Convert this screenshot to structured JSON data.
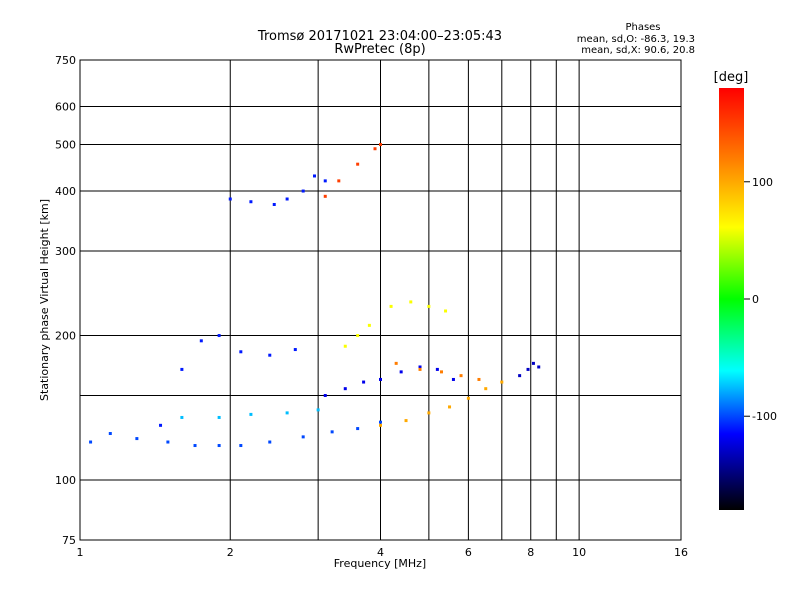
{
  "chart_data": {
    "type": "scatter",
    "title": "Tromsø 20171021 23:04:00–23:05:43",
    "subtitle": "RwPretec (8p)",
    "xlabel": "Frequency [MHz]",
    "ylabel": "Stationary phase Virtual Height [km]",
    "x_scale": "log",
    "y_scale": "log",
    "xlim": [
      1,
      16
    ],
    "ylim": [
      75,
      750
    ],
    "x_ticks": [
      1,
      2,
      4,
      6,
      8,
      10,
      16
    ],
    "x_tick_labels": [
      "1",
      "2",
      "4",
      "6",
      "8",
      "10",
      "16"
    ],
    "x_extra_gridlines": [
      3,
      5,
      7,
      9
    ],
    "y_ticks": [
      75,
      100,
      200,
      300,
      400,
      500,
      600,
      750
    ],
    "y_tick_labels": [
      "75",
      "100",
      "200",
      "300",
      "400",
      "500",
      "600",
      "750"
    ],
    "y_extra_gridlines": [
      150
    ],
    "grid": true,
    "stats": {
      "heading": "Phases",
      "line_o": "mean, sd,O: -86.3, 19.3",
      "line_x": "mean, sd,X: 90.6, 20.8"
    },
    "colorbar": {
      "label": "[deg]",
      "range": [
        -180,
        180
      ],
      "ticks": [
        100,
        0,
        -100
      ],
      "tick_labels": [
        "100",
        "0",
        "-100"
      ]
    },
    "series": [
      {
        "phase": -100,
        "points": [
          [
            1.05,
            120
          ],
          [
            1.15,
            125
          ],
          [
            1.3,
            122
          ],
          [
            1.5,
            120
          ],
          [
            1.7,
            118
          ],
          [
            1.9,
            118
          ],
          [
            2.1,
            118
          ],
          [
            2.4,
            120
          ],
          [
            2.8,
            123
          ],
          [
            3.2,
            126
          ],
          [
            3.6,
            128
          ],
          [
            4.0,
            132
          ]
        ]
      },
      {
        "phase": -75,
        "points": [
          [
            1.6,
            135
          ],
          [
            1.9,
            135
          ],
          [
            2.2,
            137
          ],
          [
            2.6,
            138
          ],
          [
            3.0,
            140
          ]
        ]
      },
      {
        "phase": -110,
        "points": [
          [
            1.45,
            130
          ],
          [
            1.6,
            170
          ],
          [
            1.75,
            195
          ],
          [
            1.9,
            200
          ],
          [
            2.1,
            185
          ],
          [
            2.4,
            182
          ],
          [
            2.7,
            187
          ]
        ]
      },
      {
        "phase": -110,
        "points": [
          [
            2.0,
            385
          ],
          [
            2.2,
            380
          ],
          [
            2.45,
            375
          ],
          [
            2.6,
            385
          ],
          [
            2.8,
            400
          ],
          [
            2.95,
            430
          ],
          [
            3.1,
            420
          ]
        ]
      },
      {
        "phase": 150,
        "points": [
          [
            3.1,
            390
          ],
          [
            3.3,
            420
          ],
          [
            3.6,
            455
          ],
          [
            3.9,
            490
          ],
          [
            4.0,
            500
          ]
        ]
      },
      {
        "phase": 60,
        "points": [
          [
            3.4,
            190
          ],
          [
            3.6,
            200
          ],
          [
            3.8,
            210
          ],
          [
            4.2,
            230
          ],
          [
            4.6,
            235
          ],
          [
            5.0,
            230
          ],
          [
            5.4,
            225
          ]
        ]
      },
      {
        "phase": -120,
        "points": [
          [
            3.1,
            150
          ],
          [
            3.4,
            155
          ],
          [
            3.7,
            160
          ],
          [
            4.0,
            162
          ],
          [
            4.4,
            168
          ],
          [
            4.8,
            172
          ],
          [
            5.2,
            170
          ],
          [
            5.6,
            162
          ]
        ]
      },
      {
        "phase": 100,
        "points": [
          [
            4.0,
            130
          ],
          [
            4.5,
            133
          ],
          [
            5.0,
            138
          ],
          [
            5.5,
            142
          ],
          [
            6.0,
            148
          ],
          [
            6.5,
            155
          ],
          [
            7.0,
            160
          ]
        ]
      },
      {
        "phase": 120,
        "points": [
          [
            4.3,
            175
          ],
          [
            4.8,
            170
          ],
          [
            5.3,
            168
          ],
          [
            5.8,
            165
          ],
          [
            6.3,
            162
          ]
        ]
      },
      {
        "phase": -130,
        "points": [
          [
            7.6,
            165
          ],
          [
            7.9,
            170
          ],
          [
            8.1,
            175
          ],
          [
            8.3,
            172
          ]
        ]
      }
    ]
  }
}
